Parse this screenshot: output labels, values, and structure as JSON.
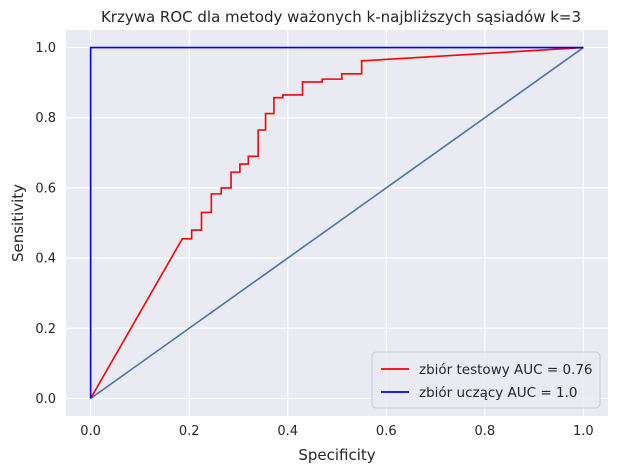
{
  "chart_data": {
    "type": "line",
    "title": "Krzywa ROC dla metody ważonych k-najbliższych sąsiadów k=3",
    "xlabel": "Specificity",
    "ylabel": "Sensitivity",
    "xlim": [
      -0.05,
      1.05
    ],
    "ylim": [
      -0.05,
      1.05
    ],
    "xticks": [
      0.0,
      0.2,
      0.4,
      0.6,
      0.8,
      1.0
    ],
    "xtick_labels": [
      "0.0",
      "0.2",
      "0.4",
      "0.6",
      "0.8",
      "1.0"
    ],
    "yticks": [
      0.0,
      0.2,
      0.4,
      0.6,
      0.8,
      1.0
    ],
    "ytick_labels": [
      "0.0",
      "0.2",
      "0.4",
      "0.6",
      "0.8",
      "1.0"
    ],
    "grid": true,
    "legend_position": "lower-right",
    "background": "#eaeaf2",
    "series": [
      {
        "name": "zbiór testowy AUC = 0.76",
        "color": "#ff0000",
        "show_in_legend": true,
        "x": [
          0.0,
          0.186,
          0.205,
          0.205,
          0.225,
          0.225,
          0.245,
          0.245,
          0.265,
          0.265,
          0.285,
          0.285,
          0.303,
          0.303,
          0.32,
          0.32,
          0.34,
          0.34,
          0.355,
          0.355,
          0.372,
          0.372,
          0.39,
          0.39,
          0.43,
          0.43,
          0.47,
          0.47,
          0.51,
          0.51,
          0.55,
          0.55,
          1.0
        ],
        "y": [
          0.0,
          0.455,
          0.455,
          0.48,
          0.48,
          0.53,
          0.53,
          0.583,
          0.583,
          0.6,
          0.6,
          0.645,
          0.645,
          0.668,
          0.668,
          0.69,
          0.69,
          0.765,
          0.765,
          0.812,
          0.812,
          0.857,
          0.857,
          0.865,
          0.865,
          0.902,
          0.902,
          0.91,
          0.91,
          0.925,
          0.925,
          0.962,
          1.0
        ]
      },
      {
        "name": "zbiór uczący AUC = 1.0",
        "color": "#0000ff",
        "show_in_legend": true,
        "x": [
          0.0,
          0.0,
          1.0
        ],
        "y": [
          0.0,
          1.0,
          1.0
        ]
      },
      {
        "name": "",
        "color": "#4c72b0",
        "show_in_legend": false,
        "x": [
          0.0,
          1.0
        ],
        "y": [
          0.0,
          1.0
        ]
      }
    ]
  }
}
